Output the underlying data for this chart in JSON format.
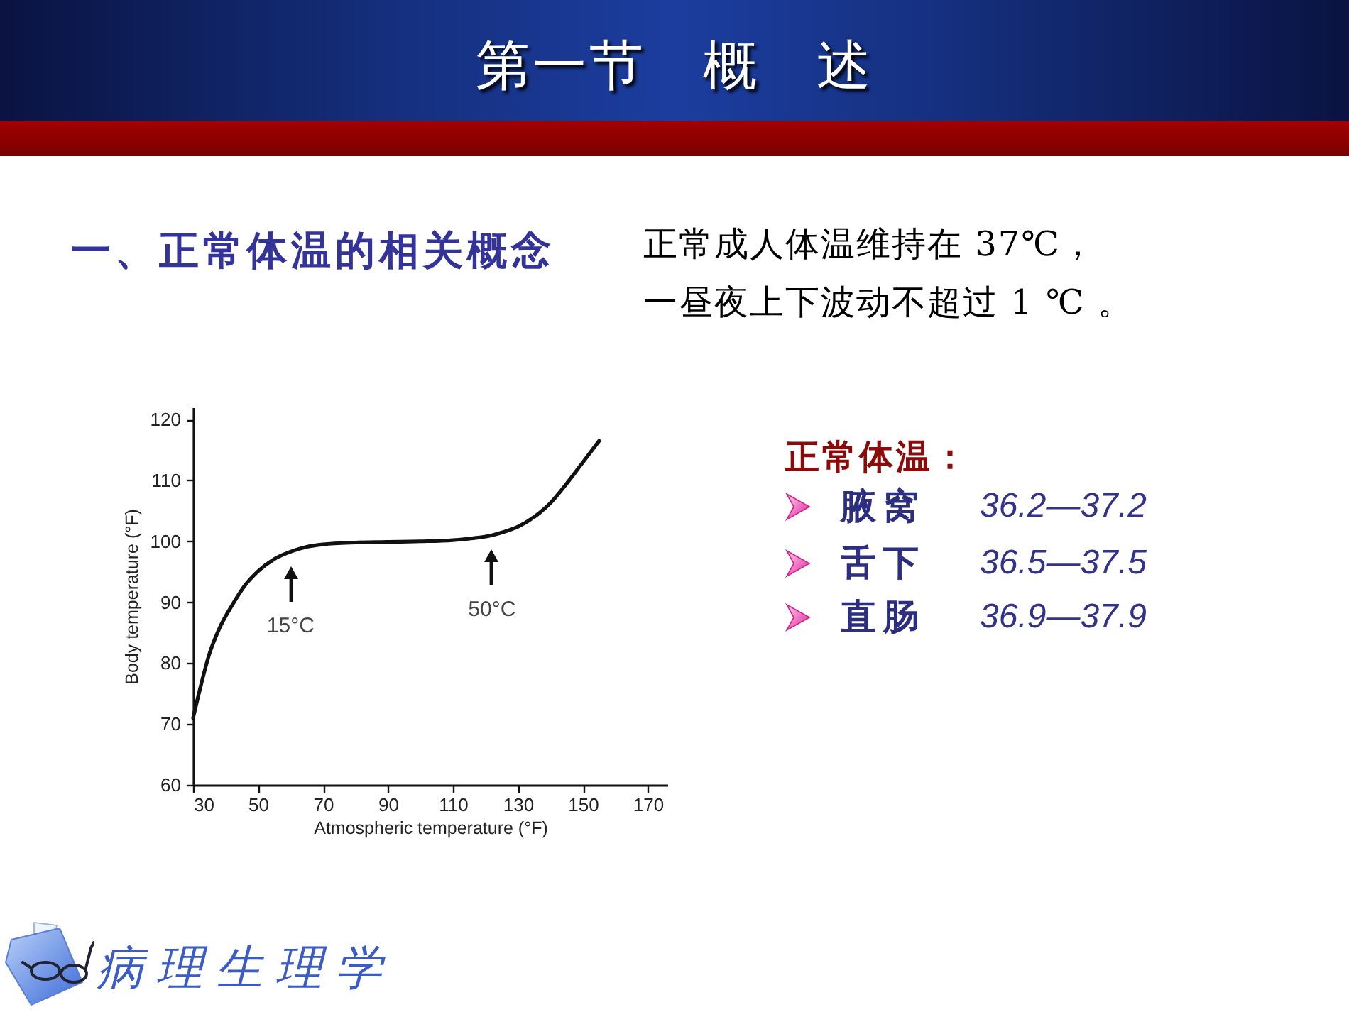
{
  "chart_data": {
    "type": "line",
    "title": "第一节　概　述",
    "subtitle": "一、正常体温的相关概念",
    "xlabel": "Atmospheric temperature (°F)",
    "ylabel": "Body temperature (°F)",
    "x": [
      30,
      32,
      35,
      38,
      42,
      46,
      50,
      55,
      60,
      65,
      70,
      80,
      90,
      100,
      110,
      116,
      122,
      126,
      130,
      135,
      140,
      145,
      150,
      155
    ],
    "values": [
      71,
      75.5,
      81.5,
      85.6,
      89.5,
      92.8,
      95.1,
      97.1,
      98.3,
      99.1,
      99.5,
      99.8,
      99.9,
      100,
      100.2,
      100.5,
      101,
      101.6,
      102.4,
      104,
      106.3,
      109.5,
      113,
      116.5
    ],
    "color": "#111111",
    "xlim": [
      30,
      176
    ],
    "ylim": [
      60,
      122
    ],
    "xticks": [
      30,
      50,
      70,
      90,
      110,
      130,
      150,
      170
    ],
    "yticks": [
      60,
      70,
      80,
      90,
      100,
      110,
      120
    ],
    "grid": false,
    "annotations": [
      "正常成人体温维持在 37℃，",
      "一昼夜上下波动不超过 1 ℃ 。",
      "正常体温：",
      "腋窝",
      "36.2—37.2",
      "舌下",
      "36.5—37.5",
      "直肠",
      "36.9—37.9",
      "病理生理学",
      {
        "text": "15°C",
        "x": 60,
        "y": 98.3
      },
      {
        "text": "50°C",
        "x": 122,
        "y": 101
      }
    ]
  }
}
